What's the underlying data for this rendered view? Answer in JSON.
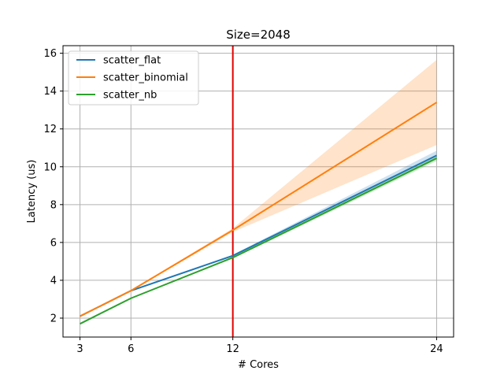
{
  "chart_data": {
    "type": "line",
    "title": "Size=2048",
    "xlabel": "# Cores",
    "ylabel": "Latency (us)",
    "xlim": [
      2.0,
      25.0
    ],
    "ylim": [
      1.0,
      16.4
    ],
    "xticks": [
      3,
      6,
      12,
      24
    ],
    "yticks": [
      2,
      4,
      6,
      8,
      10,
      12,
      14,
      16
    ],
    "grid": true,
    "legend_position": "top-left",
    "vline": {
      "x": 12,
      "color": "#e00000"
    },
    "series": [
      {
        "name": "scatter_flat",
        "color": "#1f77b4",
        "x": [
          3,
          6,
          12,
          24
        ],
        "y": [
          2.1,
          3.45,
          5.3,
          10.6
        ],
        "lower": [
          2.08,
          3.43,
          5.25,
          10.4
        ],
        "upper": [
          2.12,
          3.47,
          5.35,
          10.85
        ]
      },
      {
        "name": "scatter_binomial",
        "color": "#ff7f0e",
        "x": [
          3,
          6,
          12,
          24
        ],
        "y": [
          2.1,
          3.45,
          6.65,
          13.4
        ],
        "lower": [
          2.08,
          3.43,
          6.55,
          11.15
        ],
        "upper": [
          2.12,
          3.47,
          6.75,
          15.65
        ]
      },
      {
        "name": "scatter_nb",
        "color": "#2ca02c",
        "x": [
          3,
          6,
          12,
          24
        ],
        "y": [
          1.7,
          3.05,
          5.2,
          10.45
        ],
        "lower": [
          1.68,
          3.03,
          5.15,
          10.3
        ],
        "upper": [
          1.72,
          3.07,
          5.25,
          10.6
        ]
      }
    ]
  }
}
